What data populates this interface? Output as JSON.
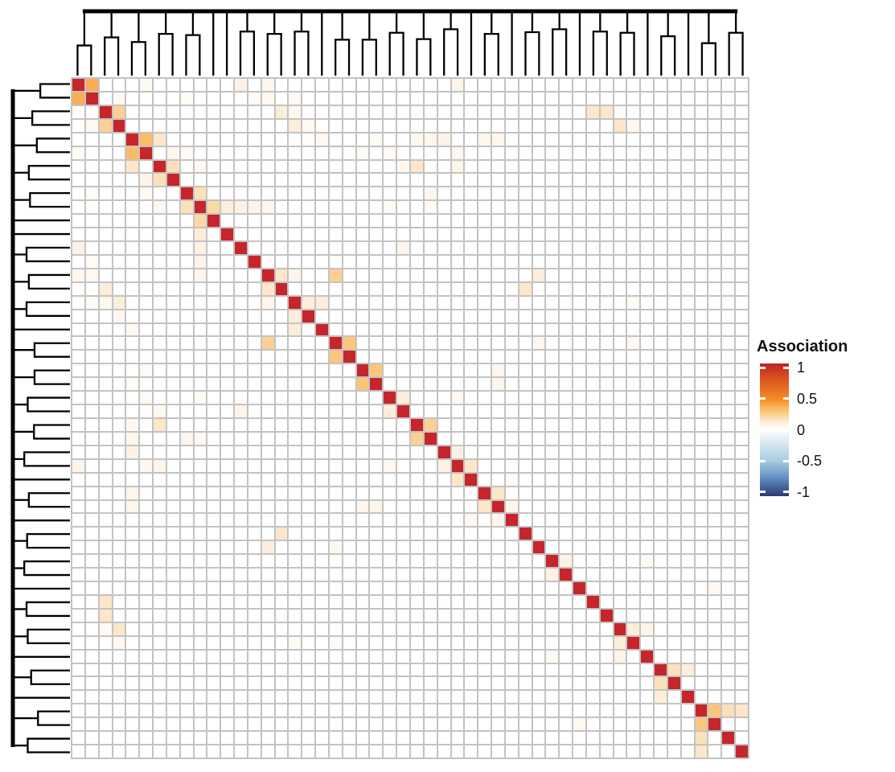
{
  "figure": {
    "kind": "clustered heatmap with row and column dendrograms",
    "background_color": "#ffffff"
  },
  "legend": {
    "title": "Association",
    "ticks": [
      {
        "value": 1,
        "label": "1"
      },
      {
        "value": 0.5,
        "label": "0.5"
      },
      {
        "value": 0,
        "label": "0"
      },
      {
        "value": -0.5,
        "label": "-0.5"
      },
      {
        "value": -1,
        "label": "-1"
      }
    ],
    "bar_value_range": [
      1.07,
      -1.07
    ],
    "gradient_stops": [
      [
        "0%",
        "#bb2327"
      ],
      [
        "10%",
        "#d74e1f"
      ],
      [
        "27%",
        "#f68c26"
      ],
      [
        "36%",
        "#fbc679"
      ],
      [
        "45%",
        "#fef0e0"
      ],
      [
        "50%",
        "#ffffff"
      ],
      [
        "58%",
        "#ddebf3"
      ],
      [
        "73%",
        "#a9cee1"
      ],
      [
        "86%",
        "#6390c2"
      ],
      [
        "100%",
        "#2a3b76"
      ]
    ]
  },
  "chart_data": {
    "type": "heatmap",
    "title": "",
    "n_rows": 50,
    "n_cols": 50,
    "symmetric": true,
    "value_name": "Association",
    "value_range": [
      -1,
      1
    ],
    "diagonal_value": 1,
    "grid_line_color": "#c3c3c3",
    "cell_base_color": "#ffffff",
    "colormap_stops": [
      [
        0,
        "#ffffff"
      ],
      [
        0.2,
        "#fdeddb"
      ],
      [
        0.35,
        "#fcd9a9"
      ],
      [
        0.5,
        "#fbbc66"
      ],
      [
        0.7,
        "#f58220"
      ],
      [
        1,
        "#c5262b"
      ]
    ],
    "cells": [
      [
        0,
        1,
        0.55
      ],
      [
        0,
        5,
        0.06
      ],
      [
        0,
        12,
        0.15
      ],
      [
        0,
        14,
        0.1
      ],
      [
        0,
        28,
        0.12
      ],
      [
        1,
        3,
        0.08
      ],
      [
        1,
        8,
        0.06
      ],
      [
        1,
        13,
        0.06
      ],
      [
        1,
        14,
        0.08
      ],
      [
        1,
        16,
        0.06
      ],
      [
        2,
        3,
        0.4
      ],
      [
        2,
        15,
        0.2
      ],
      [
        2,
        16,
        0.08
      ],
      [
        2,
        38,
        0.25
      ],
      [
        2,
        39,
        0.25
      ],
      [
        2,
        40,
        0.06
      ],
      [
        3,
        16,
        0.2
      ],
      [
        3,
        17,
        0.08
      ],
      [
        3,
        40,
        0.25
      ],
      [
        3,
        41,
        0.08
      ],
      [
        4,
        5,
        0.5
      ],
      [
        4,
        6,
        0.25
      ],
      [
        4,
        18,
        0.08
      ],
      [
        4,
        22,
        0.06
      ],
      [
        4,
        25,
        0.08
      ],
      [
        4,
        26,
        0.1
      ],
      [
        4,
        27,
        0.15
      ],
      [
        4,
        30,
        0.1
      ],
      [
        4,
        31,
        0.1
      ],
      [
        5,
        7,
        0.1
      ],
      [
        5,
        8,
        0.06
      ],
      [
        5,
        21,
        0.06
      ],
      [
        5,
        23,
        0.06
      ],
      [
        5,
        28,
        0.08
      ],
      [
        6,
        7,
        0.3
      ],
      [
        6,
        9,
        0.08
      ],
      [
        6,
        24,
        0.08
      ],
      [
        6,
        25,
        0.25
      ],
      [
        6,
        28,
        0.12
      ],
      [
        8,
        9,
        0.3
      ],
      [
        8,
        26,
        0.1
      ],
      [
        9,
        10,
        0.35
      ],
      [
        9,
        11,
        0.2
      ],
      [
        9,
        12,
        0.15
      ],
      [
        9,
        13,
        0.12
      ],
      [
        9,
        14,
        0.1
      ],
      [
        9,
        23,
        0.06
      ],
      [
        9,
        26,
        0.06
      ],
      [
        12,
        24,
        0.12
      ],
      [
        14,
        15,
        0.25
      ],
      [
        14,
        16,
        0.12
      ],
      [
        14,
        19,
        0.4
      ],
      [
        14,
        34,
        0.2
      ],
      [
        15,
        33,
        0.25
      ],
      [
        16,
        17,
        0.2
      ],
      [
        16,
        18,
        0.2
      ],
      [
        16,
        41,
        0.06
      ],
      [
        19,
        20,
        0.45
      ],
      [
        19,
        34,
        0.08
      ],
      [
        19,
        41,
        0.06
      ],
      [
        21,
        22,
        0.45
      ],
      [
        21,
        31,
        0.1
      ],
      [
        22,
        31,
        0.1
      ],
      [
        23,
        24,
        0.2
      ],
      [
        23,
        28,
        0.08
      ],
      [
        25,
        26,
        0.4
      ],
      [
        27,
        28,
        0.15
      ],
      [
        28,
        29,
        0.25
      ],
      [
        29,
        32,
        0.06
      ],
      [
        30,
        31,
        0.25
      ],
      [
        31,
        32,
        0.1
      ],
      [
        35,
        36,
        0.15
      ],
      [
        35,
        42,
        0.06
      ],
      [
        37,
        47,
        0.08
      ],
      [
        40,
        41,
        0.2
      ],
      [
        40,
        42,
        0.12
      ],
      [
        43,
        44,
        0.3
      ],
      [
        43,
        45,
        0.2
      ],
      [
        46,
        47,
        0.45
      ],
      [
        46,
        48,
        0.3
      ],
      [
        46,
        49,
        0.25
      ]
    ],
    "col_dendrogram": {
      "pairs": [
        [
          0,
          1,
          0.52
        ],
        [
          2,
          3,
          0.66
        ],
        [
          4,
          5,
          0.58
        ],
        [
          6,
          7,
          0.72
        ],
        [
          8,
          9,
          0.7
        ],
        [
          12,
          13,
          0.76
        ],
        [
          14,
          15,
          0.72
        ],
        [
          16,
          17,
          0.76
        ],
        [
          19,
          20,
          0.62
        ],
        [
          21,
          22,
          0.62
        ],
        [
          23,
          24,
          0.74
        ],
        [
          25,
          26,
          0.63
        ],
        [
          27,
          28,
          0.8
        ],
        [
          30,
          31,
          0.72
        ],
        [
          33,
          34,
          0.75
        ],
        [
          35,
          36,
          0.8
        ],
        [
          38,
          39,
          0.76
        ],
        [
          40,
          41,
          0.74
        ],
        [
          43,
          44,
          0.68
        ],
        [
          46,
          47,
          0.56
        ],
        [
          48,
          49,
          0.74
        ]
      ]
    },
    "row_dendrogram": {
      "pairs": [
        [
          0,
          1,
          0.52
        ],
        [
          2,
          3,
          0.66
        ],
        [
          4,
          5,
          0.58
        ],
        [
          6,
          7,
          0.72
        ],
        [
          8,
          9,
          0.7
        ],
        [
          12,
          13,
          0.76
        ],
        [
          14,
          15,
          0.72
        ],
        [
          16,
          17,
          0.76
        ],
        [
          19,
          20,
          0.62
        ],
        [
          21,
          22,
          0.62
        ],
        [
          23,
          24,
          0.74
        ],
        [
          25,
          26,
          0.63
        ],
        [
          27,
          28,
          0.8
        ],
        [
          30,
          31,
          0.72
        ],
        [
          33,
          34,
          0.75
        ],
        [
          35,
          36,
          0.8
        ],
        [
          38,
          39,
          0.76
        ],
        [
          40,
          41,
          0.74
        ],
        [
          43,
          44,
          0.68
        ],
        [
          46,
          47,
          0.56
        ],
        [
          48,
          49,
          0.74
        ]
      ]
    },
    "line_color": "#000000"
  }
}
